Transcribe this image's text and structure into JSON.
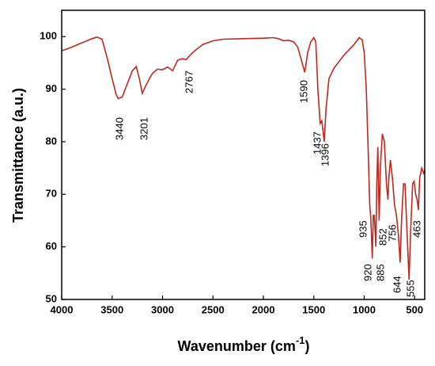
{
  "chart_data": {
    "type": "line",
    "ylabel": "Transmittance (a.u.)",
    "xlabel": {
      "text": "Wavenumber (cm",
      "sup": "-1",
      "end": ")"
    },
    "xlim": [
      4000,
      400
    ],
    "ylim": [
      50,
      105
    ],
    "xticks": [
      4000,
      3500,
      3000,
      2500,
      2000,
      1500,
      1000,
      500
    ],
    "yticks": [
      50,
      60,
      70,
      80,
      90,
      100
    ],
    "peaks": [
      3440,
      3201,
      2767,
      1590,
      1437,
      1396,
      935,
      920,
      885,
      852,
      756,
      644,
      555,
      463
    ],
    "series": [
      {
        "color": "#c0281e",
        "x": [
          4000,
          3900,
          3800,
          3700,
          3650,
          3600,
          3550,
          3500,
          3460,
          3440,
          3400,
          3350,
          3300,
          3260,
          3230,
          3201,
          3170,
          3130,
          3100,
          3050,
          3000,
          2950,
          2900,
          2850,
          2800,
          2767,
          2700,
          2600,
          2500,
          2400,
          2200,
          2000,
          1900,
          1850,
          1800,
          1750,
          1700,
          1660,
          1630,
          1590,
          1560,
          1530,
          1500,
          1480,
          1460,
          1437,
          1420,
          1396,
          1380,
          1350,
          1300,
          1200,
          1100,
          1050,
          1020,
          1000,
          980,
          960,
          945,
          935,
          928,
          920,
          910,
          900,
          885,
          875,
          865,
          852,
          840,
          820,
          800,
          780,
          765,
          756,
          740,
          720,
          700,
          680,
          660,
          644,
          630,
          610,
          595,
          580,
          555,
          540,
          520,
          505,
          490,
          475,
          463,
          450,
          430,
          410,
          400
        ],
        "values": [
          97.3,
          98,
          98.8,
          99.6,
          99.9,
          99.5,
          96,
          92,
          89,
          88.2,
          88.5,
          91,
          93.5,
          94.3,
          92,
          89.2,
          90.5,
          92,
          93,
          93.8,
          93.7,
          94.2,
          93.5,
          95.5,
          95.8,
          95.6,
          97,
          98.5,
          99.2,
          99.5,
          99.6,
          99.7,
          99.8,
          99.6,
          99.2,
          99.3,
          99,
          98,
          96,
          93.2,
          97,
          99,
          99.8,
          99,
          90,
          83.5,
          84,
          80,
          86,
          92,
          94,
          96.5,
          98.5,
          99.8,
          99.4,
          97,
          90,
          78,
          68,
          65.5,
          62,
          57.8,
          66,
          66,
          60,
          72,
          79,
          65,
          75,
          81.5,
          80,
          72,
          69,
          73,
          76.5,
          73,
          68,
          66,
          62,
          57,
          65,
          72,
          72,
          65,
          53.8,
          63,
          72,
          72.5,
          70,
          69,
          67,
          73,
          75,
          74,
          74.5
        ]
      }
    ]
  }
}
